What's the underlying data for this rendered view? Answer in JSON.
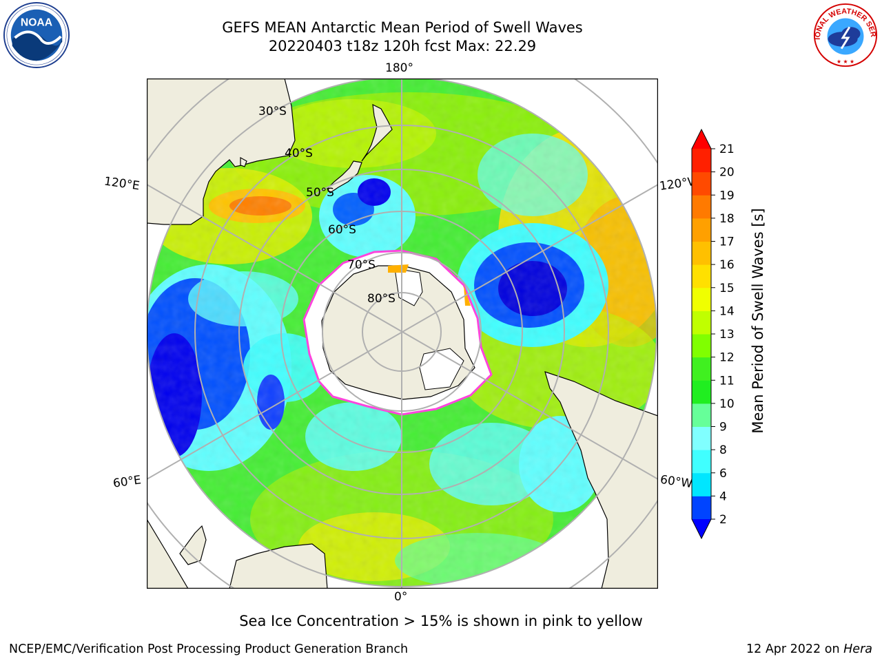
{
  "title": {
    "line1": "GEFS MEAN Antarctic Mean Period of Swell Waves",
    "line2": "20220403 t18z 120h fcst   Max: 22.29"
  },
  "logos": {
    "left": {
      "name": "noaa-logo",
      "text": "NOAA",
      "ring_text": "NATIONAL OCEANIC AND ATMOSPHERIC ADMINISTRATION · U.S. DEPARTMENT OF COMMERCE"
    },
    "right": {
      "name": "nws-logo",
      "ring_text": "NATIONAL WEATHER SERVICE"
    }
  },
  "map": {
    "projection": "south-polar-stereographic",
    "longitude_labels": {
      "top": "180°",
      "bottom": "0°",
      "upper_left": "120°E",
      "lower_left": "60°E",
      "upper_right": "120°W",
      "lower_right": "60°W"
    },
    "latitude_labels": [
      "30°S",
      "40°S",
      "50°S",
      "60°S",
      "70°S",
      "80°S"
    ],
    "field": "Mean Period of Swell Waves",
    "sea_ice_note": "Sea Ice Concentration > 15% is shown in pink to yellow",
    "colors": {
      "land": "#efedde",
      "ice": "#ffffff",
      "ice_edge": "#ff44dd",
      "grid": "#b0b0b0",
      "frame": "#000000"
    }
  },
  "colorbar": {
    "label": "Mean Period of Swell Waves [s]",
    "ticks": [
      "2",
      "4",
      "6",
      "8",
      "9",
      "10",
      "11",
      "12",
      "13",
      "14",
      "15",
      "16",
      "17",
      "18",
      "19",
      "20",
      "21"
    ],
    "colors": [
      "#0044ff",
      "#00a4ff",
      "#00e6ff",
      "#40ffff",
      "#80ffff",
      "#66ff99",
      "#20ee20",
      "#40f020",
      "#80ff00",
      "#c0ff00",
      "#f0ff00",
      "#ffe000",
      "#ffc000",
      "#ffa000",
      "#ff7a00",
      "#ff4a00",
      "#ff2000"
    ],
    "under_color": "#0000ff",
    "over_color": "#ff0000"
  },
  "footer": {
    "left": "NCEP/EMC/Verification Post Processing Product Generation Branch",
    "date": "12 Apr 2022 on",
    "machine": "Hera"
  }
}
